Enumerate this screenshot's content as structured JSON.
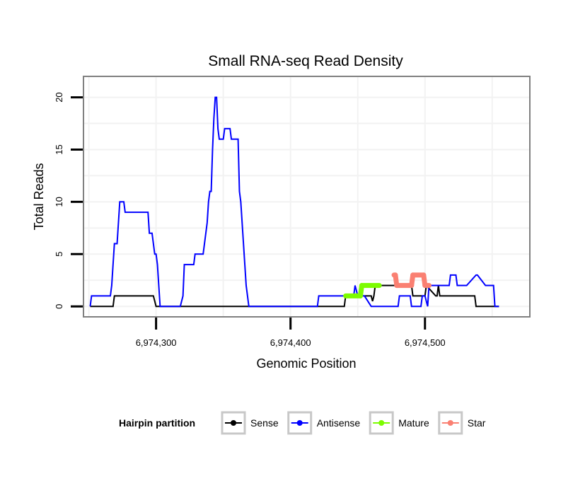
{
  "chart_data": {
    "type": "line",
    "title": "Small RNA-seq Read Density",
    "xlabel": "Genomic Position",
    "ylabel": "Total Reads",
    "xlim": [
      6974246,
      6974578
    ],
    "ylim": [
      -1,
      22
    ],
    "xticks": [
      6974300,
      6974400,
      6974500
    ],
    "xtick_labels": [
      "6,974,300",
      "6,974,400",
      "6,974,500"
    ],
    "yticks": [
      0,
      5,
      10,
      15,
      20
    ],
    "ytick_labels": [
      "0",
      "5",
      "10",
      "15",
      "20"
    ],
    "grid": true,
    "legend": {
      "title": "Hairpin partition",
      "position": "bottom",
      "entries": [
        {
          "label": "Sense",
          "color": "#000000"
        },
        {
          "label": "Antisense",
          "color": "#0000ff"
        },
        {
          "label": "Mature",
          "color": "#7cfc00"
        },
        {
          "label": "Star",
          "color": "#fa8072"
        }
      ]
    },
    "series": [
      {
        "name": "Sense",
        "color": "#000000",
        "style": "line",
        "x": [
          6974251,
          6974268,
          6974269,
          6974290,
          6974291,
          6974298,
          6974300,
          6974440,
          6974441,
          6974460,
          6974461,
          6974462,
          6974463,
          6974470,
          6974471,
          6974475,
          6974476,
          6974490,
          6974491,
          6974500,
          6974501,
          6974508,
          6974509,
          6974510,
          6974511,
          6974537,
          6974538,
          6974555
        ],
        "y": [
          0,
          0,
          1,
          1,
          1,
          1,
          0,
          0,
          1,
          1,
          0.5,
          1,
          2,
          2,
          2,
          2,
          2,
          2,
          1,
          1,
          2,
          1,
          1,
          2,
          1,
          1,
          0,
          0
        ]
      },
      {
        "name": "Antisense",
        "color": "#0000ff",
        "style": "line",
        "x": [
          6974251,
          6974252,
          6974266,
          6974267,
          6974268,
          6974269,
          6974271,
          6974272,
          6974273,
          6974275,
          6974276,
          6974277,
          6974284,
          6974285,
          6974294,
          6974295,
          6974297,
          6974298,
          6974299,
          6974300,
          6974301,
          6974302,
          6974303,
          6974318,
          6974320,
          6974321,
          6974328,
          6974329,
          6974335,
          6974336,
          6974338,
          6974339,
          6974340,
          6974341,
          6974342,
          6974343,
          6974344,
          6974345,
          6974346,
          6974347,
          6974350,
          6974351,
          6974355,
          6974356,
          6974361,
          6974362,
          6974363,
          6974364,
          6974365,
          6974366,
          6974367,
          6974368,
          6974369,
          6974370,
          6974371,
          6974400,
          6974402,
          6974420,
          6974421,
          6974422,
          6974440,
          6974441,
          6974443,
          6974447,
          6974448,
          6974450,
          6974454,
          6974455,
          6974460,
          6974480,
          6974481,
          6974483,
          6974489,
          6974490,
          6974497,
          6974498,
          6974500,
          6974502,
          6974503,
          6974518,
          6974519,
          6974523,
          6974524,
          6974525,
          6974526,
          6974530,
          6974531,
          6974538,
          6974539,
          6974545,
          6974548,
          6974551,
          6974552,
          6974555
        ],
        "y": [
          0,
          1,
          1,
          2,
          4,
          6,
          6,
          8,
          10,
          10,
          10,
          9,
          9,
          9,
          9,
          7,
          7,
          6,
          5,
          5,
          4,
          2,
          0,
          0,
          1,
          4,
          4,
          5,
          5,
          6,
          8,
          10,
          11,
          11,
          15,
          18,
          20,
          20,
          17,
          16,
          16,
          17,
          17,
          16,
          16,
          11,
          10,
          8,
          6,
          4,
          2,
          1,
          0,
          0,
          0,
          0,
          0,
          0,
          1,
          1,
          1,
          1,
          1,
          1,
          2,
          1,
          1,
          1,
          0,
          0,
          1,
          1,
          1,
          0,
          0,
          1,
          1,
          0,
          2,
          2,
          3,
          3,
          2,
          2,
          2,
          2,
          2,
          3,
          3,
          2,
          2,
          2,
          0,
          0
        ]
      },
      {
        "name": "Mature",
        "color": "#7cfc00",
        "style": "segments",
        "segments": [
          {
            "x": [
              6974441,
              6974452
            ],
            "y": [
              1,
              1
            ]
          },
          {
            "x": [
              6974452,
              6974453
            ],
            "y": [
              1,
              2
            ]
          },
          {
            "x": [
              6974453,
              6974466
            ],
            "y": [
              2,
              2
            ]
          }
        ]
      },
      {
        "name": "Star",
        "color": "#fa8072",
        "style": "segments",
        "segments": [
          {
            "x": [
              6974477,
              6974478
            ],
            "y": [
              3,
              3
            ]
          },
          {
            "x": [
              6974478,
              6974479
            ],
            "y": [
              3,
              2
            ]
          },
          {
            "x": [
              6974479,
              6974490
            ],
            "y": [
              2,
              2
            ]
          },
          {
            "x": [
              6974490,
              6974491
            ],
            "y": [
              2,
              3
            ]
          },
          {
            "x": [
              6974491,
              6974499
            ],
            "y": [
              3,
              3
            ]
          },
          {
            "x": [
              6974499,
              6974500
            ],
            "y": [
              3,
              2
            ]
          },
          {
            "x": [
              6974500,
              6974503
            ],
            "y": [
              2,
              2
            ]
          }
        ]
      }
    ]
  }
}
